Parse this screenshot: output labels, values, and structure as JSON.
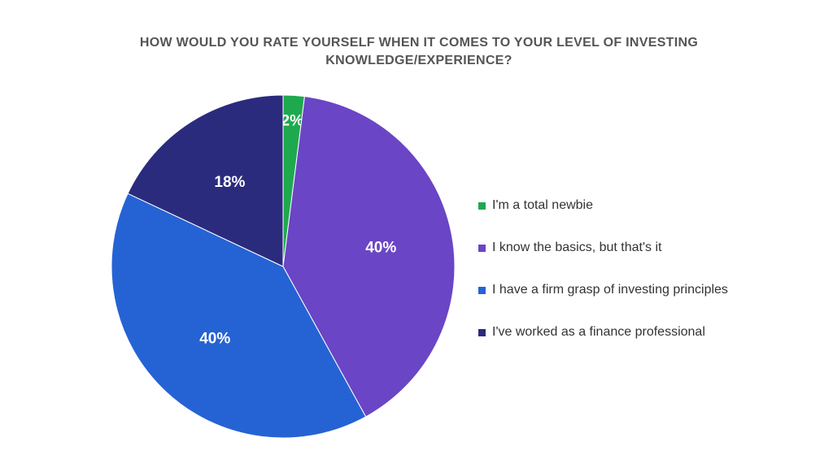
{
  "chart_data": {
    "type": "pie",
    "title_lines": [
      "HOW WOULD YOU RATE YOURSELF WHEN IT COMES TO YOUR LEVEL OF INVESTING",
      "KNOWLEDGE/EXPERIENCE?"
    ],
    "categories": [
      "I'm a total newbie",
      "I know the basics, but that's it",
      "I have a firm grasp of investing principles",
      "I've worked as a finance professional"
    ],
    "values": [
      2,
      40,
      40,
      18
    ],
    "labels": [
      "2%",
      "40%",
      "40%",
      "18%"
    ],
    "colors": [
      "#1fa94f",
      "#6a45c5",
      "#2563d4",
      "#2b2b7e"
    ],
    "legend_position": "right"
  }
}
